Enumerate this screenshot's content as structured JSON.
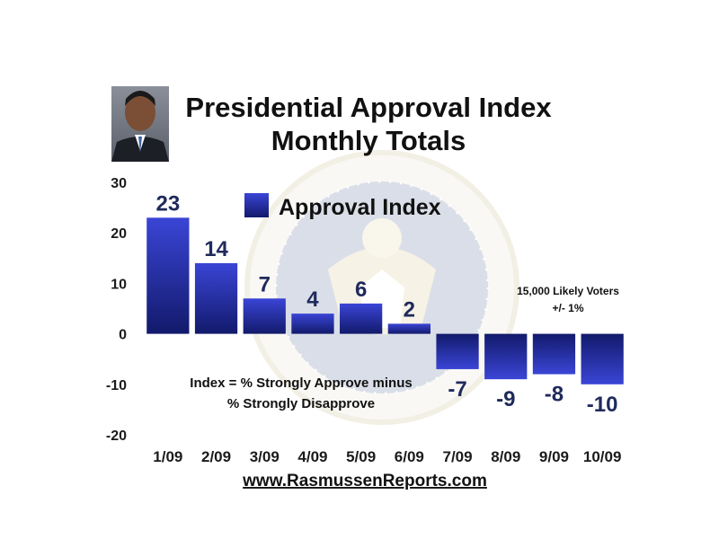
{
  "header": {
    "title": "Presidential Approval Index",
    "subtitle": "Monthly Totals"
  },
  "legend": {
    "label": "Approval Index",
    "placement": "top-center"
  },
  "sample_note": {
    "line1": "15,000 Likely Voters",
    "line2": "+/- 1%"
  },
  "definition_note": {
    "line1": "Index = % Strongly Approve minus",
    "line2": "% Strongly Disapprove"
  },
  "footer": {
    "url": "www.RasmussenReports.com"
  },
  "colors": {
    "bar_top": "#3a45d6",
    "bar_bottom": "#121a6b",
    "value_label": "#1f2a5c",
    "grid": "#bdbdbd"
  },
  "chart_data": {
    "type": "bar",
    "title": "Presidential Approval Index",
    "subtitle": "Monthly Totals",
    "categories": [
      "1/09",
      "2/09",
      "3/09",
      "4/09",
      "5/09",
      "6/09",
      "7/09",
      "8/09",
      "9/09",
      "10/09"
    ],
    "series": [
      {
        "name": "Approval Index",
        "values": [
          23,
          14,
          7,
          4,
          6,
          2,
          -7,
          -9,
          -8,
          -10
        ]
      }
    ],
    "data_labels": [
      "23",
      "14",
      "7",
      "4",
      "6",
      "2",
      "-7",
      "-9",
      "-8",
      "-10"
    ],
    "ylim": [
      -20,
      30
    ],
    "yticks": [
      -20,
      -10,
      0,
      10,
      20,
      30
    ],
    "ytick_labels": [
      "-20",
      "-10",
      "0",
      "10",
      "20",
      "30"
    ],
    "grid": "horizontal",
    "xlabel": "",
    "ylabel": ""
  }
}
